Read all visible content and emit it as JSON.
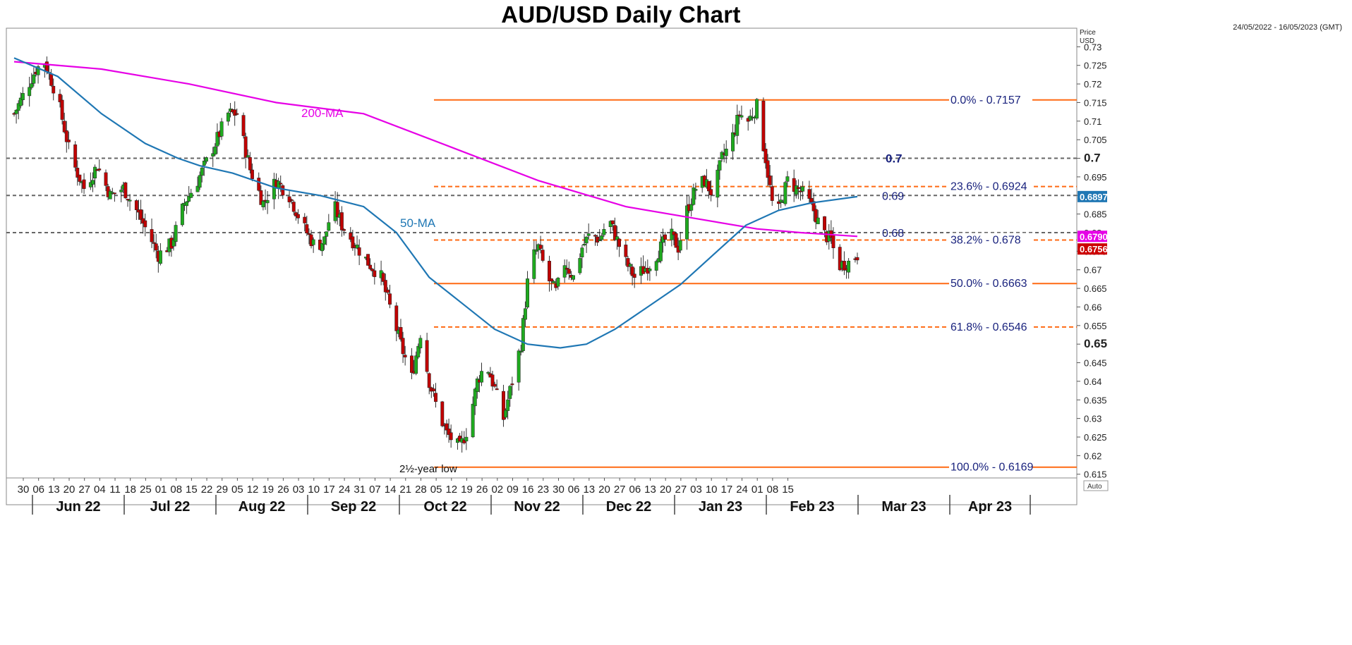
{
  "chart_data": {
    "type": "candlestick",
    "title": "AUD/USD Daily Chart",
    "date_range": "24/05/2022 - 16/05/2023 (GMT)",
    "price_axis_label": [
      "Price",
      "USD"
    ],
    "auto_label": "Auto",
    "ylim": [
      0.614,
      0.735
    ],
    "y_ticks": [
      0.615,
      0.62,
      0.625,
      0.63,
      0.635,
      0.64,
      0.645,
      0.65,
      0.655,
      0.66,
      0.665,
      0.67,
      0.675,
      0.68,
      0.685,
      0.69,
      0.695,
      0.7,
      0.705,
      0.71,
      0.715,
      0.72,
      0.725,
      0.73
    ],
    "y_tick_labels": [
      "0.615",
      "0.62",
      "0.625",
      "0.63",
      "0.635",
      "0.64",
      "0.645",
      "0.65",
      "0.655",
      "0.66",
      "0.665",
      "0.67",
      "0.675",
      "0.68",
      "0.685",
      "0.69",
      "0.695",
      "0.7",
      "0.705",
      "0.71",
      "0.715",
      "0.72",
      "0.725",
      "0.73"
    ],
    "y_bold_ticks": [
      "0.65",
      "0.7"
    ],
    "x_day_ticks": [
      "30",
      "06",
      "13",
      "20",
      "27",
      "04",
      "11",
      "18",
      "25",
      "01",
      "08",
      "15",
      "22",
      "29",
      "05",
      "12",
      "19",
      "26",
      "03",
      "10",
      "17",
      "24",
      "31",
      "07",
      "14",
      "21",
      "28",
      "05",
      "12",
      "19",
      "26",
      "02",
      "09",
      "16",
      "23",
      "30",
      "06",
      "13",
      "20",
      "27",
      "06",
      "13",
      "20",
      "27",
      "03",
      "10",
      "17",
      "24",
      "01",
      "08",
      "15"
    ],
    "x_months": [
      "Jun 22",
      "Jul 22",
      "Aug 22",
      "Sep 22",
      "Oct 22",
      "Nov 22",
      "Dec 22",
      "Jan 23",
      "Feb 23",
      "Mar 23",
      "Apr 23"
    ],
    "price_path": [
      [
        0,
        0.712
      ],
      [
        5,
        0.718
      ],
      [
        10,
        0.724
      ],
      [
        14,
        0.726
      ],
      [
        20,
        0.716
      ],
      [
        26,
        0.7
      ],
      [
        32,
        0.692
      ],
      [
        38,
        0.698
      ],
      [
        44,
        0.69
      ],
      [
        50,
        0.692
      ],
      [
        56,
        0.686
      ],
      [
        62,
        0.679
      ],
      [
        66,
        0.674
      ],
      [
        72,
        0.677
      ],
      [
        78,
        0.688
      ],
      [
        84,
        0.694
      ],
      [
        88,
        0.699
      ],
      [
        92,
        0.704
      ],
      [
        98,
        0.712
      ],
      [
        102,
        0.712
      ],
      [
        108,
        0.697
      ],
      [
        114,
        0.688
      ],
      [
        120,
        0.694
      ],
      [
        126,
        0.69
      ],
      [
        132,
        0.682
      ],
      [
        138,
        0.676
      ],
      [
        142,
        0.678
      ],
      [
        146,
        0.688
      ],
      [
        150,
        0.682
      ],
      [
        156,
        0.677
      ],
      [
        162,
        0.672
      ],
      [
        168,
        0.668
      ],
      [
        174,
        0.656
      ],
      [
        178,
        0.648
      ],
      [
        182,
        0.641
      ],
      [
        186,
        0.653
      ],
      [
        190,
        0.64
      ],
      [
        194,
        0.632
      ],
      [
        198,
        0.626
      ],
      [
        201,
        0.624
      ],
      [
        204,
        0.622
      ],
      [
        208,
        0.628
      ],
      [
        212,
        0.64
      ],
      [
        216,
        0.645
      ],
      [
        220,
        0.638
      ],
      [
        224,
        0.63
      ],
      [
        228,
        0.64
      ],
      [
        232,
        0.65
      ],
      [
        236,
        0.672
      ],
      [
        240,
        0.676
      ],
      [
        244,
        0.668
      ],
      [
        248,
        0.664
      ],
      [
        252,
        0.672
      ],
      [
        256,
        0.668
      ],
      [
        260,
        0.676
      ],
      [
        264,
        0.68
      ],
      [
        268,
        0.678
      ],
      [
        272,
        0.684
      ],
      [
        276,
        0.678
      ],
      [
        280,
        0.672
      ],
      [
        284,
        0.668
      ],
      [
        288,
        0.67
      ],
      [
        292,
        0.672
      ],
      [
        296,
        0.676
      ],
      [
        300,
        0.68
      ],
      [
        304,
        0.676
      ],
      [
        308,
        0.686
      ],
      [
        312,
        0.692
      ],
      [
        316,
        0.694
      ],
      [
        320,
        0.69
      ],
      [
        324,
        0.7
      ],
      [
        328,
        0.704
      ],
      [
        332,
        0.712
      ],
      [
        336,
        0.71
      ],
      [
        340,
        0.714
      ],
      [
        344,
        0.7
      ],
      [
        347,
        0.688
      ],
      [
        350,
        0.686
      ],
      [
        354,
        0.694
      ],
      [
        358,
        0.692
      ],
      [
        362,
        0.69
      ],
      [
        366,
        0.686
      ],
      [
        370,
        0.68
      ],
      [
        374,
        0.678
      ],
      [
        377,
        0.671
      ],
      [
        382,
        0.672
      ],
      [
        386,
        0.674
      ]
    ],
    "ma_200": {
      "name": "200-MA",
      "points": [
        [
          0,
          0.726
        ],
        [
          40,
          0.724
        ],
        [
          80,
          0.72
        ],
        [
          120,
          0.715
        ],
        [
          160,
          0.712
        ],
        [
          200,
          0.703
        ],
        [
          240,
          0.694
        ],
        [
          280,
          0.687
        ],
        [
          310,
          0.684
        ],
        [
          340,
          0.681
        ],
        [
          360,
          0.68
        ],
        [
          386,
          0.679
        ]
      ]
    },
    "ma_50": {
      "name": "50-MA",
      "points": [
        [
          0,
          0.727
        ],
        [
          20,
          0.722
        ],
        [
          40,
          0.712
        ],
        [
          60,
          0.704
        ],
        [
          75,
          0.7
        ],
        [
          85,
          0.698
        ],
        [
          100,
          0.696
        ],
        [
          120,
          0.692
        ],
        [
          140,
          0.69
        ],
        [
          160,
          0.687
        ],
        [
          175,
          0.68
        ],
        [
          190,
          0.668
        ],
        [
          205,
          0.661
        ],
        [
          220,
          0.654
        ],
        [
          235,
          0.65
        ],
        [
          250,
          0.649
        ],
        [
          262,
          0.65
        ],
        [
          275,
          0.654
        ],
        [
          290,
          0.66
        ],
        [
          305,
          0.666
        ],
        [
          320,
          0.674
        ],
        [
          335,
          0.682
        ],
        [
          350,
          0.686
        ],
        [
          365,
          0.688
        ],
        [
          386,
          0.6897
        ]
      ]
    },
    "fibonacci": [
      {
        "label": "0.0%",
        "value": 0.7157,
        "text": "0.7157",
        "style": "solid"
      },
      {
        "label": "23.6%",
        "value": 0.6924,
        "text": "0.6924",
        "style": "dashed"
      },
      {
        "label": "38.2%",
        "value": 0.678,
        "text": "0.678",
        "style": "dashed"
      },
      {
        "label": "50.0%",
        "value": 0.6663,
        "text": "0.6663",
        "style": "solid"
      },
      {
        "label": "61.8%",
        "value": 0.6546,
        "text": "0.6546",
        "style": "dashed"
      },
      {
        "label": "100.0%",
        "value": 0.6169,
        "text": "0.6169",
        "style": "solid"
      }
    ],
    "horizontal_levels": [
      {
        "value": 0.7,
        "text": "0.7"
      },
      {
        "value": 0.69,
        "text": "0.69"
      },
      {
        "value": 0.68,
        "text": "0.68"
      }
    ],
    "price_tags": [
      {
        "text": "0.6897",
        "value": 0.6897,
        "color": "#1f77b4"
      },
      {
        "text": "0.6790",
        "value": 0.679,
        "color": "#e600e6"
      },
      {
        "text": "0.6756",
        "value": 0.6756,
        "color": "#cc0000"
      }
    ],
    "annotations": {
      "low_label": "2½-year low"
    },
    "colors": {
      "up": "#1faa1f",
      "down": "#c00000",
      "ma200": "#e600e6",
      "ma50": "#1f77b4",
      "fib": "#ff6a13",
      "levels": "#666666"
    }
  }
}
